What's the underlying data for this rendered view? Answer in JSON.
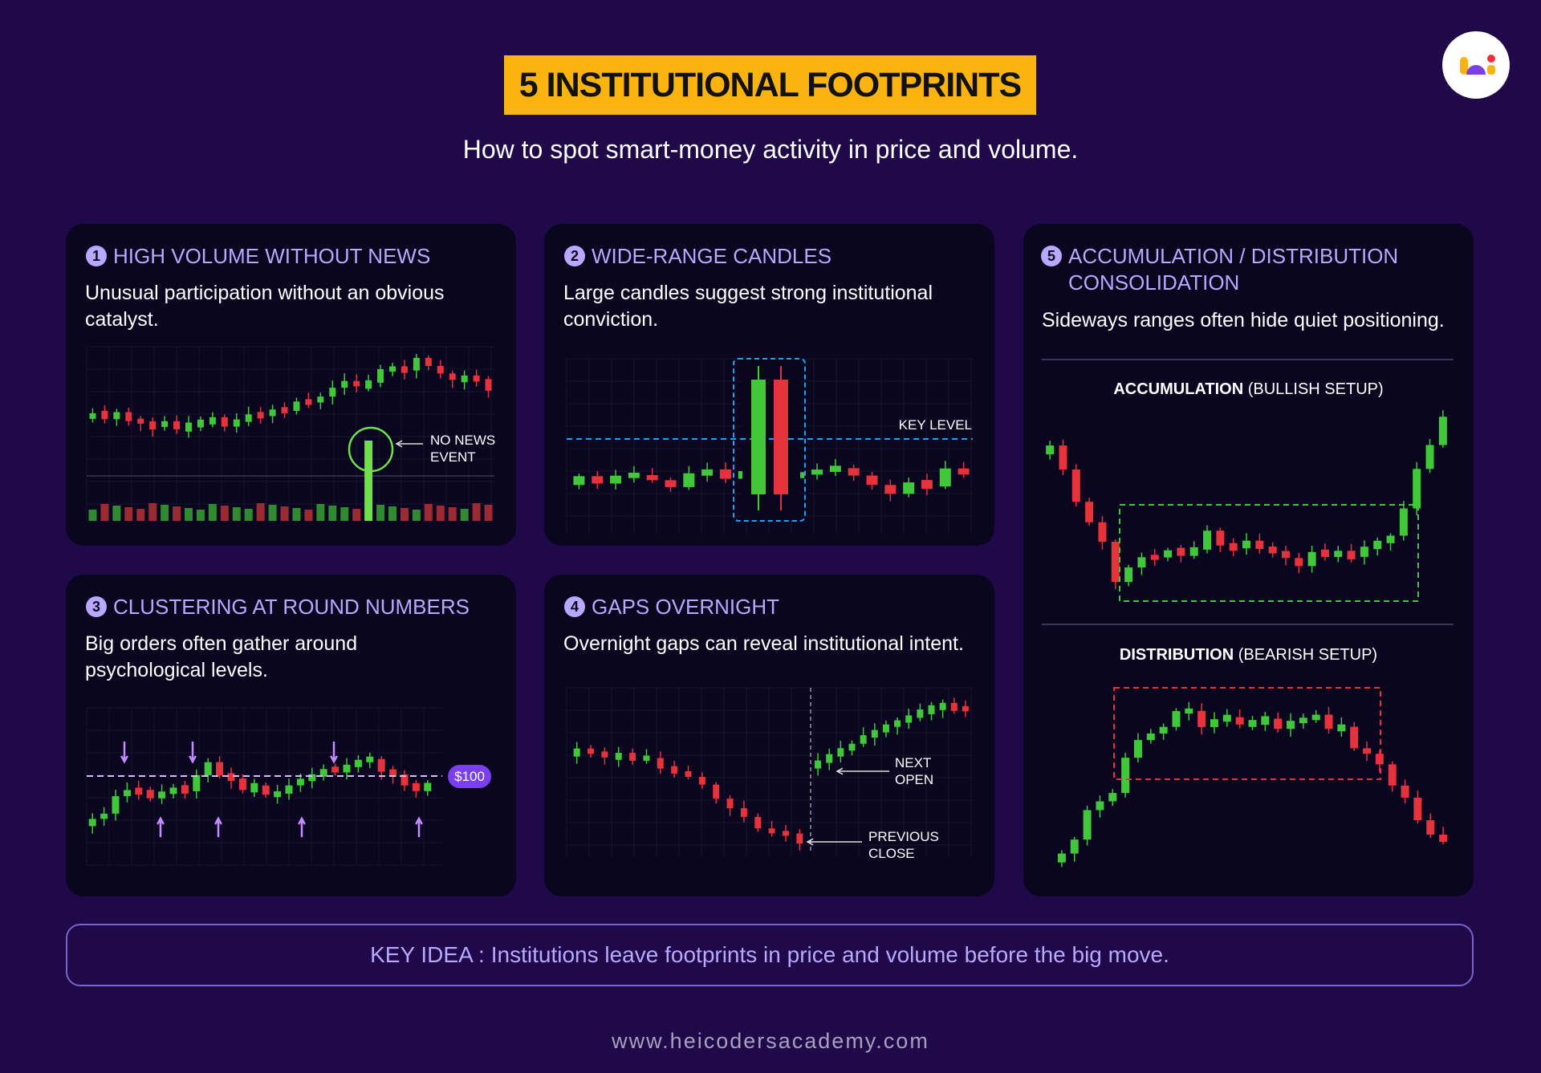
{
  "header": {
    "title": "5 INSTITUTIONAL FOOTPRINTS",
    "subtitle": "How to spot smart-money activity in price and volume."
  },
  "cards": [
    {
      "number": "1",
      "title": "HIGH VOLUME WITHOUT NEWS",
      "description": "Unusual participation without an obvious catalyst.",
      "annotations": [
        "NO NEWS",
        "EVENT"
      ]
    },
    {
      "number": "2",
      "title": "WIDE-RANGE CANDLES",
      "description": "Large candles suggest strong institutional conviction.",
      "annotations": [
        "KEY LEVEL"
      ]
    },
    {
      "number": "3",
      "title": "CLUSTERING AT ROUND NUMBERS",
      "description": "Big orders often gather around psychological levels.",
      "annotations": [
        "$100"
      ]
    },
    {
      "number": "4",
      "title": "GAPS OVERNIGHT",
      "description": "Overnight gaps can reveal institutional intent.",
      "annotations": [
        "NEXT",
        "OPEN",
        "PREVIOUS",
        "CLOSE"
      ]
    },
    {
      "number": "5",
      "title": "ACCUMULATION / DISTRIBUTION CONSOLIDATION",
      "description": "Sideways ranges often hide quiet positioning.",
      "panels": [
        {
          "label": "ACCUMULATION",
          "note": "(BULLISH SETUP)"
        },
        {
          "label": "DISTRIBUTION",
          "note": "(BEARISH SETUP)"
        }
      ]
    }
  ],
  "key_idea": {
    "label": "KEY IDEA :",
    "text": "Institutions leave footprints in price and volume before the big move."
  },
  "footer": "www.heicodersacademy.com"
}
